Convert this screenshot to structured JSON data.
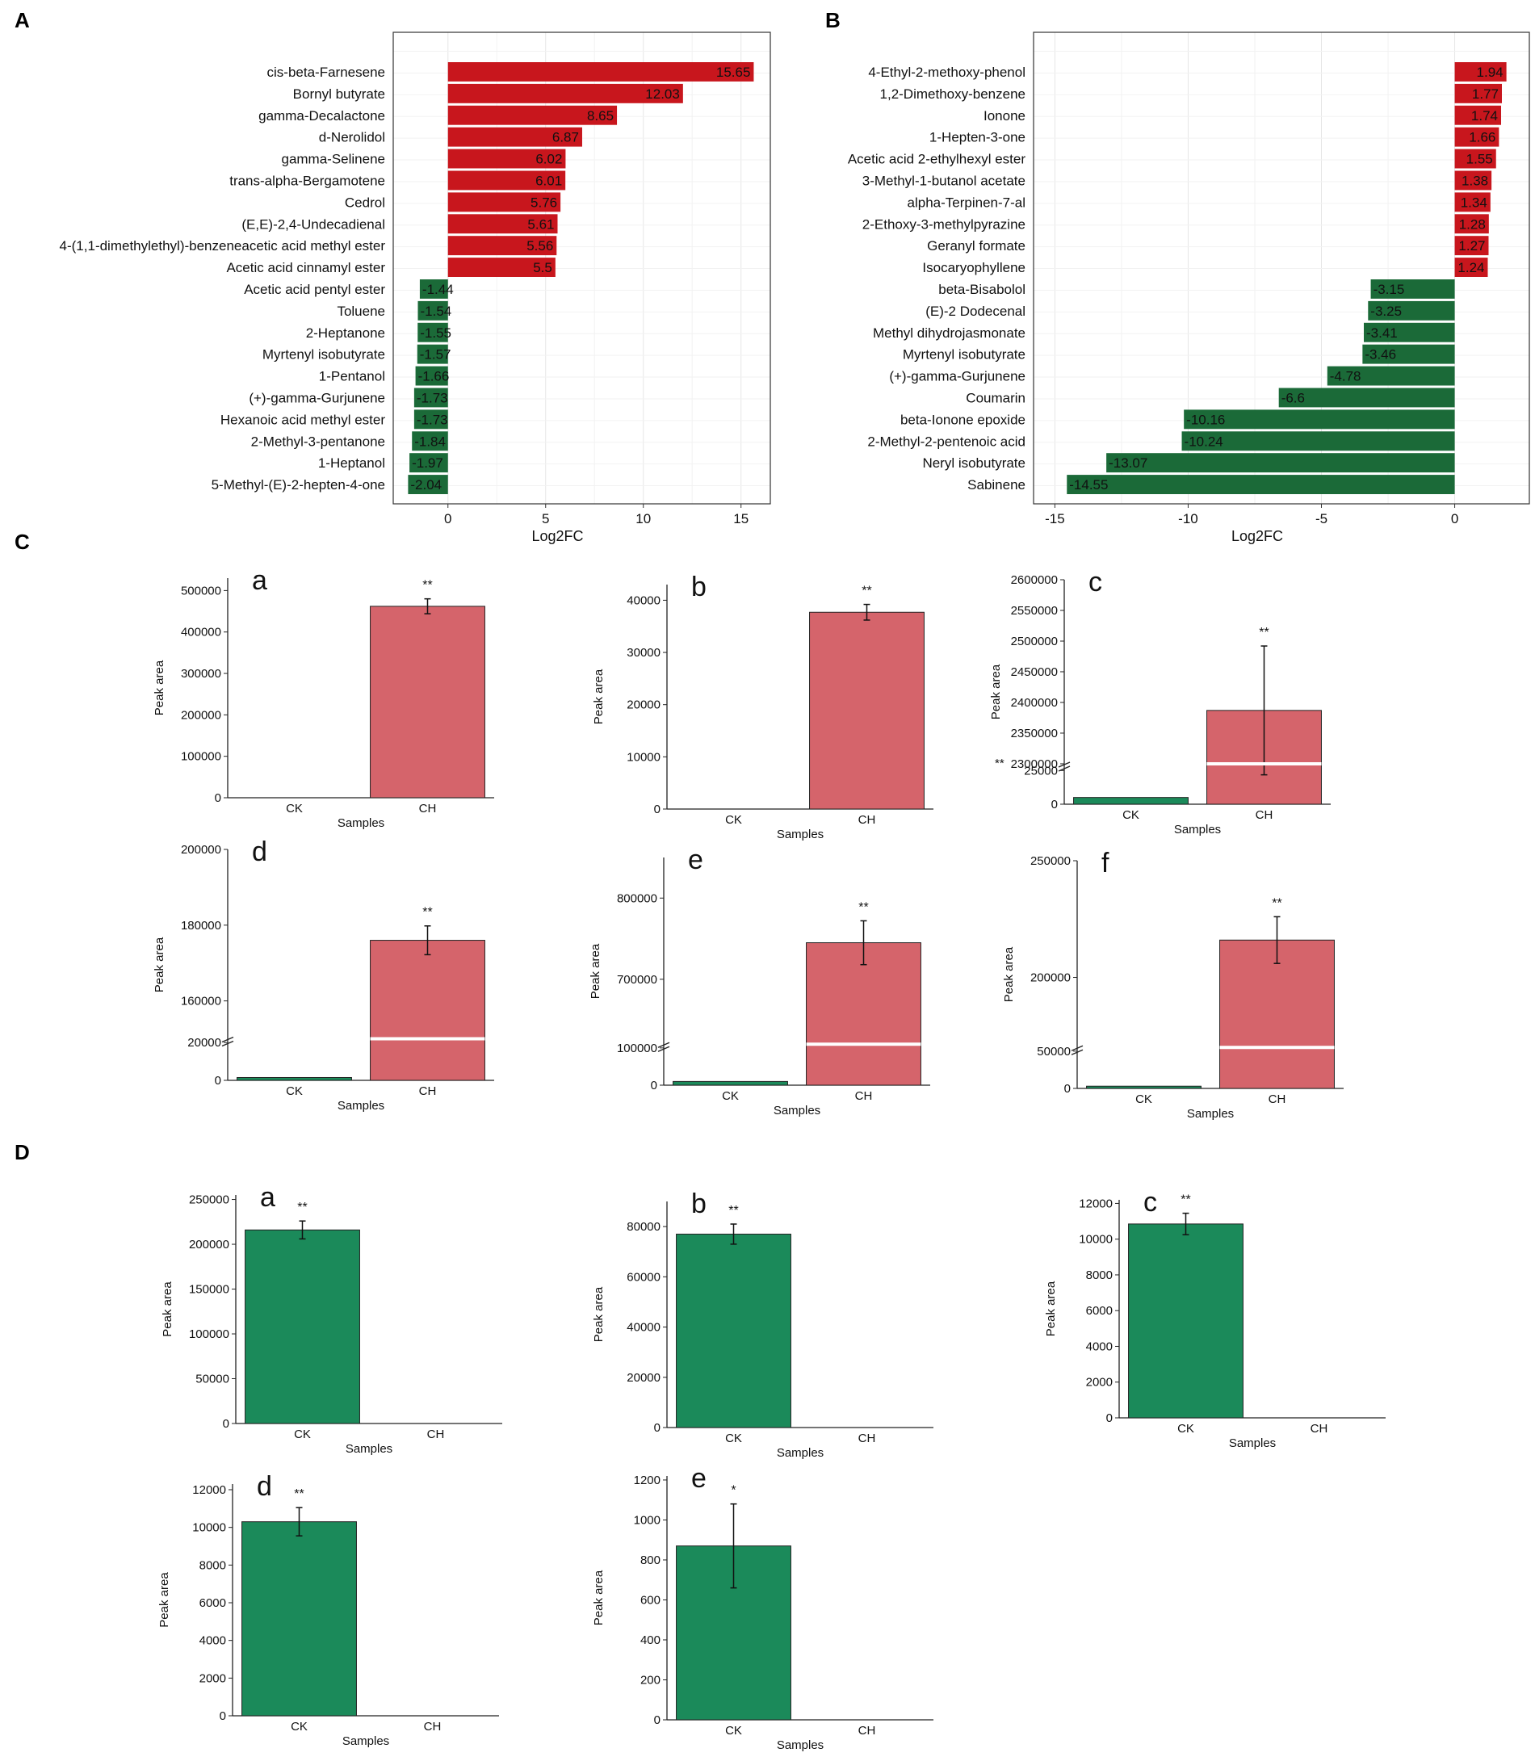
{
  "colors": {
    "up": "#c8161d",
    "down": "#1b6a38",
    "ch_bar": "#d5646b",
    "ck_bar": "#1b8a5a",
    "grid": "#e6e6e6"
  },
  "chart_data": [
    {
      "id": "A",
      "type": "bar",
      "orientation": "horizontal",
      "panel_label": "A",
      "xlabel": "Log2FC",
      "xlim": [
        -2.8,
        16.5
      ],
      "xticks": [
        0,
        5,
        10,
        15
      ],
      "categories": [
        "cis-beta-Farnesene",
        "Bornyl butyrate",
        "gamma-Decalactone",
        "d-Nerolidol",
        "gamma-Selinene",
        "trans-alpha-Bergamotene",
        "Cedrol",
        "(E,E)-2,4-Undecadienal",
        "4-(1,1-dimethylethyl)-benzeneacetic acid methyl ester",
        "Acetic acid cinnamyl ester",
        "Acetic acid pentyl ester",
        "Toluene",
        "2-Heptanone",
        "Myrtenyl isobutyrate",
        "1-Pentanol",
        "(+)-gamma-Gurjunene",
        "Hexanoic acid methyl ester",
        "2-Methyl-3-pentanone",
        "1-Heptanol",
        "5-Methyl-(E)-2-hepten-4-one"
      ],
      "values": [
        15.65,
        12.03,
        8.65,
        6.87,
        6.02,
        6.01,
        5.76,
        5.61,
        5.56,
        5.5,
        -1.44,
        -1.54,
        -1.55,
        -1.57,
        -1.66,
        -1.73,
        -1.73,
        -1.84,
        -1.97,
        -2.04
      ],
      "labels": [
        "15.65",
        "12.03",
        "8.65",
        "6.87",
        "6.02",
        "6.01",
        "5.76",
        "5.61",
        "5.56",
        "5.5",
        "-1.44",
        "-1.54",
        "-1.55",
        "-1.57",
        "-1.66",
        "-1.73",
        "-1.73",
        "-1.84",
        "-1.97",
        "-2.04"
      ]
    },
    {
      "id": "B",
      "type": "bar",
      "orientation": "horizontal",
      "panel_label": "B",
      "xlabel": "Log2FC",
      "xlim": [
        -15.8,
        2.8
      ],
      "xticks": [
        -15,
        -10,
        -5,
        0
      ],
      "categories": [
        "4-Ethyl-2-methoxy-phenol",
        "1,2-Dimethoxy-benzene",
        "Ionone",
        "1-Hepten-3-one",
        "Acetic acid 2-ethylhexyl ester",
        "3-Methyl-1-butanol acetate",
        "alpha-Terpinen-7-al",
        "2-Ethoxy-3-methylpyrazine",
        "Geranyl formate",
        "Isocaryophyllene",
        "beta-Bisabolol",
        "(E)-2 Dodecenal",
        "Methyl dihydrojasmonate",
        "Myrtenyl isobutyrate",
        "(+)-gamma-Gurjunene",
        "Coumarin",
        "beta-Ionone epoxide",
        "2-Methyl-2-pentenoic acid",
        "Neryl isobutyrate",
        "Sabinene"
      ],
      "values": [
        1.94,
        1.77,
        1.74,
        1.66,
        1.55,
        1.38,
        1.34,
        1.28,
        1.27,
        1.24,
        -3.15,
        -3.25,
        -3.41,
        -3.46,
        -4.78,
        -6.6,
        -10.16,
        -10.24,
        -13.07,
        -14.55
      ],
      "labels": [
        "1.94",
        "1.77",
        "1.74",
        "1.66",
        "1.55",
        "1.38",
        "1.34",
        "1.28",
        "1.27",
        "1.24",
        "-3.15",
        "-3.25",
        "-3.41",
        "-3.46",
        "-4.78",
        "-6.6",
        "-10.16",
        "-10.24",
        "-13.07",
        "-14.55"
      ]
    },
    {
      "id": "C-a",
      "type": "bar",
      "section": "C",
      "panel_label": "a",
      "ylabel": "Peak area",
      "xlabel": "Samples",
      "categories": [
        "CK",
        "CH"
      ],
      "values": [
        0,
        462000
      ],
      "errors": [
        0,
        18000
      ],
      "significance": "**",
      "sig_bar": "CH",
      "ylim": [
        0,
        530000
      ],
      "yticks": [
        "0",
        "100000",
        "200000",
        "300000",
        "400000",
        "500000"
      ]
    },
    {
      "id": "C-b",
      "type": "bar",
      "section": "C",
      "panel_label": "b",
      "ylabel": "Peak area",
      "xlabel": "Samples",
      "categories": [
        "CK",
        "CH"
      ],
      "values": [
        0,
        37700
      ],
      "errors": [
        0,
        1500
      ],
      "significance": "**",
      "sig_bar": "CH",
      "ylim": [
        0,
        43000
      ],
      "yticks": [
        "0",
        "10000",
        "20000",
        "30000",
        "40000"
      ]
    },
    {
      "id": "C-c",
      "type": "bar",
      "section": "C",
      "panel_label": "c",
      "ylabel": "Peak area",
      "xlabel": "Samples",
      "categories": [
        "CK",
        "CH"
      ],
      "values": [
        5000,
        2387000
      ],
      "errors": [
        0,
        105000
      ],
      "significance": "**",
      "sig_bar": "CH",
      "axis_break": {
        "lower_ylim": [
          0,
          30000
        ],
        "upper_ylim": [
          2300000,
          2600000
        ],
        "break_marker": "**"
      },
      "yticks": [
        "0",
        "25000",
        "2300000",
        "2350000",
        "2400000",
        "2450000",
        "2500000",
        "2550000",
        "2600000"
      ]
    },
    {
      "id": "C-d",
      "type": "bar",
      "section": "C",
      "panel_label": "d",
      "ylabel": "Peak area",
      "xlabel": "Samples",
      "categories": [
        "CK",
        "CH"
      ],
      "values": [
        1500,
        176000
      ],
      "errors": [
        0,
        3800
      ],
      "significance": "**",
      "sig_bar": "CH",
      "axis_break": {
        "lower_ylim": [
          0,
          22000
        ],
        "upper_ylim": [
          150000,
          200000
        ]
      },
      "yticks": [
        "0",
        "20000",
        "160000",
        "180000",
        "200000"
      ]
    },
    {
      "id": "C-e",
      "type": "bar",
      "section": "C",
      "panel_label": "e",
      "ylabel": "Peak area",
      "xlabel": "Samples",
      "categories": [
        "CK",
        "CH"
      ],
      "values": [
        10000,
        745000
      ],
      "errors": [
        0,
        27000
      ],
      "significance": "**",
      "sig_bar": "CH",
      "axis_break": {
        "lower_ylim": [
          0,
          110000
        ],
        "upper_ylim": [
          620000,
          850000
        ]
      },
      "yticks": [
        "0",
        "100000",
        "700000",
        "800000"
      ]
    },
    {
      "id": "C-f",
      "type": "bar",
      "section": "C",
      "panel_label": "f",
      "ylabel": "Peak area",
      "xlabel": "Samples",
      "categories": [
        "CK",
        "CH"
      ],
      "values": [
        3000,
        216000
      ],
      "errors": [
        0,
        10000
      ],
      "significance": "**",
      "sig_bar": "CH",
      "axis_break": {
        "lower_ylim": [
          0,
          55000
        ],
        "upper_ylim": [
          170000,
          250000
        ]
      },
      "yticks": [
        "0",
        "50000",
        "200000",
        "250000"
      ]
    },
    {
      "id": "D-a",
      "type": "bar",
      "section": "D",
      "panel_label": "a",
      "ylabel": "Peak area",
      "xlabel": "Samples",
      "categories": [
        "CK",
        "CH"
      ],
      "values": [
        216000,
        0
      ],
      "errors": [
        10000,
        0
      ],
      "significance": "**",
      "sig_bar": "CK",
      "ylim": [
        0,
        255000
      ],
      "yticks": [
        "0",
        "50000",
        "100000",
        "150000",
        "200000",
        "250000"
      ]
    },
    {
      "id": "D-b",
      "type": "bar",
      "section": "D",
      "panel_label": "b",
      "ylabel": "Peak area",
      "xlabel": "Samples",
      "categories": [
        "CK",
        "CH"
      ],
      "values": [
        77000,
        0
      ],
      "errors": [
        4000,
        0
      ],
      "significance": "**",
      "sig_bar": "CK",
      "ylim": [
        0,
        90000
      ],
      "yticks": [
        "0",
        "20000",
        "40000",
        "60000",
        "80000"
      ]
    },
    {
      "id": "D-c",
      "type": "bar",
      "section": "D",
      "panel_label": "c",
      "ylabel": "Peak area",
      "xlabel": "Samples",
      "categories": [
        "CK",
        "CH"
      ],
      "values": [
        10850,
        0
      ],
      "errors": [
        600,
        0
      ],
      "significance": "**",
      "sig_bar": "CK",
      "ylim": [
        0,
        12200
      ],
      "yticks": [
        "0",
        "2000",
        "4000",
        "6000",
        "8000",
        "10000",
        "12000"
      ]
    },
    {
      "id": "D-d",
      "type": "bar",
      "section": "D",
      "panel_label": "d",
      "ylabel": "Peak area",
      "xlabel": "Samples",
      "categories": [
        "CK",
        "CH"
      ],
      "values": [
        10300,
        0
      ],
      "errors": [
        750,
        0
      ],
      "significance": "**",
      "sig_bar": "CK",
      "ylim": [
        0,
        12300
      ],
      "yticks": [
        "0",
        "2000",
        "4000",
        "6000",
        "8000",
        "10000",
        "12000"
      ]
    },
    {
      "id": "D-e",
      "type": "bar",
      "section": "D",
      "panel_label": "e",
      "ylabel": "Peak area",
      "xlabel": "Samples",
      "categories": [
        "CK",
        "CH"
      ],
      "values": [
        870,
        0
      ],
      "errors": [
        210,
        0
      ],
      "significance": "*",
      "sig_bar": "CK",
      "ylim": [
        0,
        1220
      ],
      "yticks": [
        "0",
        "200",
        "400",
        "600",
        "800",
        "1000",
        "1200"
      ]
    }
  ],
  "section_labels": [
    "A",
    "B",
    "C",
    "D"
  ]
}
